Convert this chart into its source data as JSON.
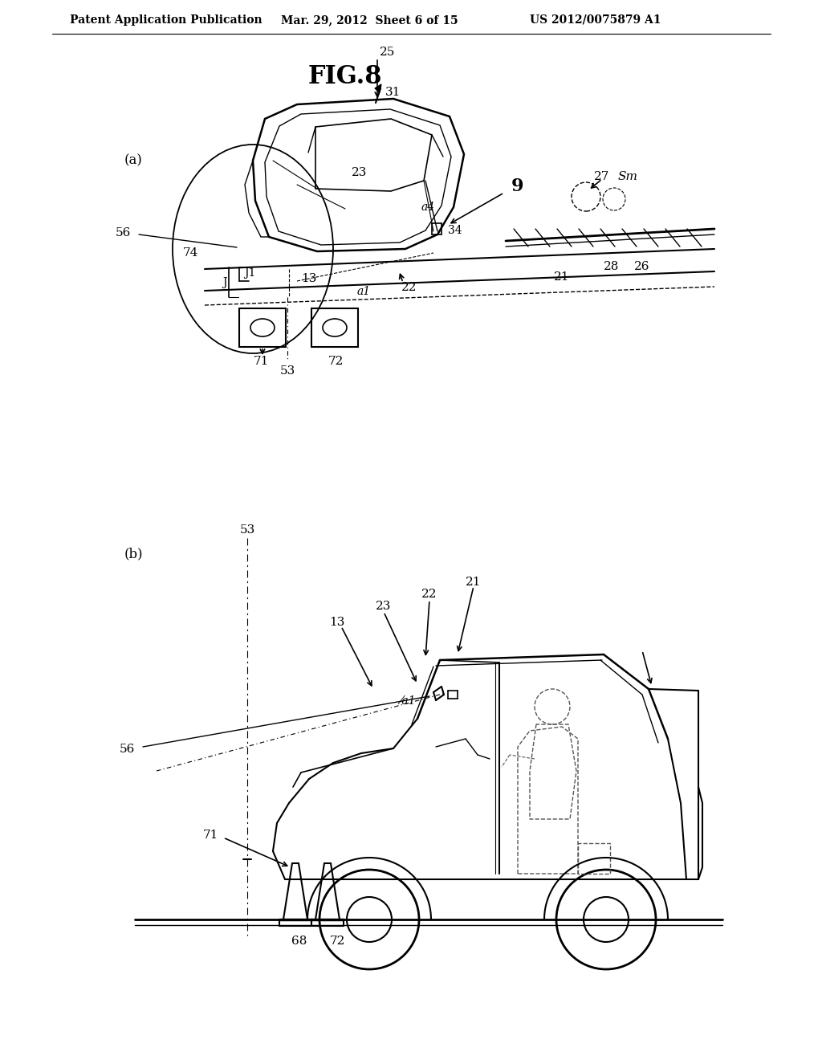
{
  "bg_color": "#ffffff",
  "text_color": "#000000",
  "line_color": "#000000",
  "header_left": "Patent Application Publication",
  "header_center": "Mar. 29, 2012  Sheet 6 of 15",
  "header_right": "US 2012/0075879 A1",
  "fig_title": "FIG.8"
}
